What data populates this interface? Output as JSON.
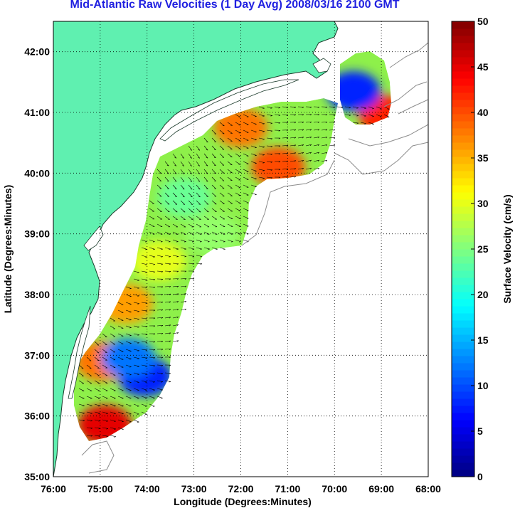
{
  "title": "Mid-Atlantic Raw Velocities (1 Day Avg) 2008/03/16 2100 GMT",
  "x_axis": {
    "label": "Longitude (Degrees:Minutes)",
    "ticks": [
      "76:00",
      "75:00",
      "74:00",
      "73:00",
      "72:00",
      "71:00",
      "70:00",
      "69:00",
      "68:00"
    ]
  },
  "y_axis": {
    "label": "Latitude (Degrees:Minutes)",
    "ticks": [
      "35:00",
      "36:00",
      "37:00",
      "38:00",
      "39:00",
      "40:00",
      "41:00",
      "42:00"
    ]
  },
  "colorbar": {
    "label": "Surface Velocity (cm/s)",
    "ticks": [
      "0",
      "5",
      "10",
      "15",
      "20",
      "25",
      "30",
      "35",
      "40",
      "45",
      "50"
    ],
    "range": [
      0,
      50
    ],
    "colormap": "jet"
  },
  "colors": {
    "land": "#5ff0b0",
    "title": "#1f1fe0",
    "bathymetry": "#8c8c8c",
    "arrows": "#000000"
  },
  "chart_data": {
    "type": "heatmap",
    "title": "Mid-Atlantic Raw Velocities (1 Day Avg) 2008/03/16 2100 GMT",
    "xlabel": "Longitude (Degrees:Minutes)",
    "ylabel": "Latitude (Degrees:Minutes)",
    "xlim": [
      -76,
      -68
    ],
    "ylim": [
      35,
      42.5
    ],
    "value_label": "Surface Velocity (cm/s)",
    "value_range": [
      0,
      50
    ],
    "grid": true,
    "hotspots": [
      {
        "lon": -74.9,
        "lat": 35.85,
        "speed": 45
      },
      {
        "lon": -74.95,
        "lat": 36.9,
        "speed": 38
      },
      {
        "lon": -74.45,
        "lat": 37.85,
        "speed": 36
      },
      {
        "lon": -73.75,
        "lat": 38.55,
        "speed": 30
      },
      {
        "lon": -71.2,
        "lat": 40.1,
        "speed": 40
      },
      {
        "lon": -72.0,
        "lat": 40.75,
        "speed": 38
      },
      {
        "lon": -68.9,
        "lat": 40.95,
        "speed": 42
      },
      {
        "lon": -74.05,
        "lat": 36.65,
        "speed": 8
      },
      {
        "lon": -69.6,
        "lat": 41.35,
        "speed": 8
      },
      {
        "lon": -74.4,
        "lat": 36.95,
        "speed": 12
      },
      {
        "lon": -73.2,
        "lat": 39.6,
        "speed": 24
      },
      {
        "lon": -72.6,
        "lat": 39.0,
        "speed": 26
      }
    ]
  }
}
